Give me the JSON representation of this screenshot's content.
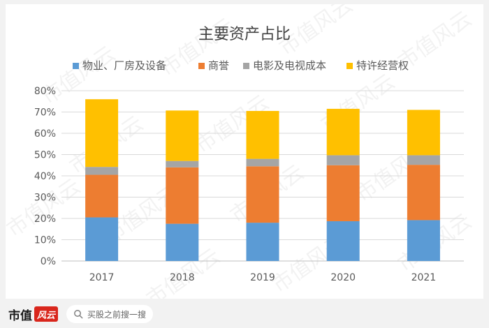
{
  "footer": {
    "brand_text": "市值",
    "brand_mark": "风云",
    "search_placeholder": "买股之前搜一搜"
  },
  "watermark_text": "市值风云",
  "chart_data": {
    "type": "bar",
    "stacked": true,
    "title": "主要资产占比",
    "xlabel": "",
    "ylabel": "",
    "categories": [
      "2017",
      "2018",
      "2019",
      "2020",
      "2021"
    ],
    "ylim": [
      0,
      80
    ],
    "yticks": [
      0,
      10,
      20,
      30,
      40,
      50,
      60,
      70,
      80
    ],
    "y_unit": "%",
    "grid": true,
    "legend_position": "top",
    "series": [
      {
        "name": "物业、厂房及设备",
        "color": "#5b9bd5",
        "values": [
          20.5,
          17.5,
          18.0,
          18.7,
          19.2
        ]
      },
      {
        "name": "商誉",
        "color": "#ed7d31",
        "values": [
          20.0,
          26.5,
          26.5,
          26.3,
          26.0
        ]
      },
      {
        "name": "电影及电视成本",
        "color": "#a5a5a5",
        "values": [
          3.7,
          3.0,
          3.5,
          4.7,
          4.5
        ]
      },
      {
        "name": "特许经营权",
        "color": "#ffc000",
        "values": [
          31.8,
          23.7,
          22.5,
          21.8,
          21.3
        ]
      }
    ]
  }
}
